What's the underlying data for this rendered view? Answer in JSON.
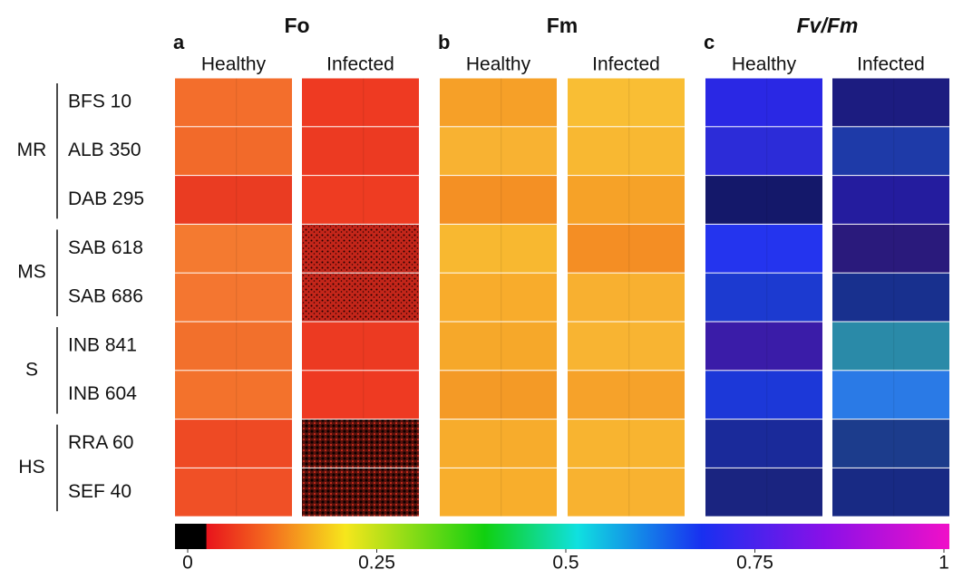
{
  "panels": [
    {
      "letter": "a",
      "title": "Fo",
      "columns": [
        "Healthy",
        "Infected"
      ]
    },
    {
      "letter": "b",
      "title": "Fm",
      "columns": [
        "Healthy",
        "Infected"
      ]
    },
    {
      "letter": "c",
      "title": "Fv/Fm",
      "columns": [
        "Healthy",
        "Infected"
      ]
    }
  ],
  "groups": [
    {
      "label": "MR",
      "genotypes": [
        "BFS 10",
        "ALB 350",
        "DAB 295"
      ]
    },
    {
      "label": "MS",
      "genotypes": [
        "SAB 618",
        "SAB 686"
      ]
    },
    {
      "label": "S",
      "genotypes": [
        "INB 841",
        "INB 604"
      ]
    },
    {
      "label": "HS",
      "genotypes": [
        "RRA 60",
        "SEF 40"
      ]
    }
  ],
  "colorbar": {
    "lim": [
      0,
      1
    ],
    "ticks": [
      0,
      0.25,
      0.5,
      0.75,
      1
    ]
  }
}
